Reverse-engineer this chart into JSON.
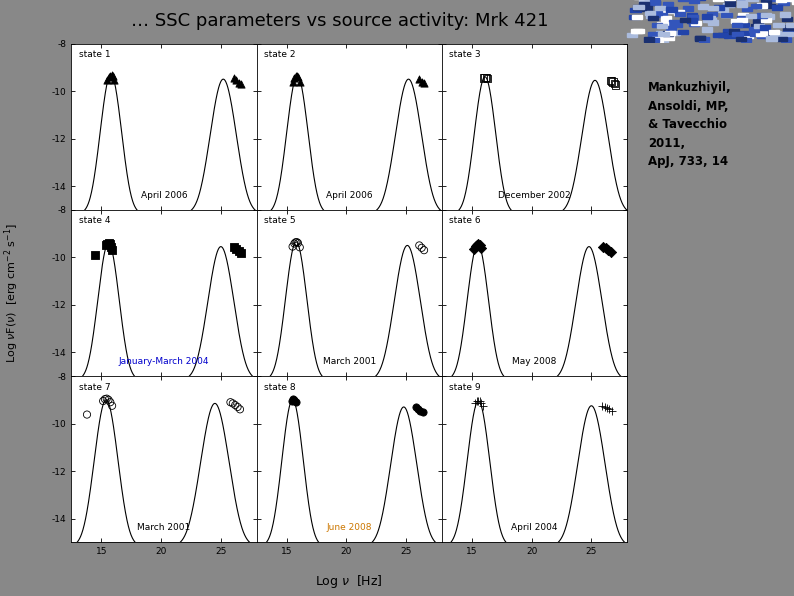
{
  "title": "… SSC parameters vs source activity: Mrk 421",
  "title_bg": "#ccff99",
  "title_fontsize": 13,
  "overall_bg": "#888888",
  "ylabel": "Log $\\nu$F($\\nu$)  [erg cm$^{-2}$ s$^{-1}$]",
  "xlabel": "Log $\\nu$  [Hz]",
  "annotation_text": "Mankuzhiyil,\nAnsoldi, MP,\n& Tavecchio\n2011,\nApJ, 733, 14",
  "annotation_bg": "#ffff99",
  "panels": [
    {
      "state": "state 1",
      "date": "April 2006",
      "date_color": "black",
      "synch_peak_x": 15.8,
      "ic_peak_x": 25.2,
      "synch_peak_y": -9.3,
      "ic_peak_y": -9.5,
      "s_sig": 0.9,
      "i_sig": 1.1,
      "data_pts": [
        [
          15.5,
          -9.55
        ],
        [
          15.65,
          -9.42
        ],
        [
          15.75,
          -9.35
        ],
        [
          15.85,
          -9.32
        ],
        [
          15.95,
          -9.37
        ],
        [
          16.1,
          -9.55
        ],
        [
          26.1,
          -9.45
        ],
        [
          26.3,
          -9.55
        ],
        [
          26.5,
          -9.65
        ],
        [
          26.7,
          -9.72
        ]
      ],
      "data_marker": "^",
      "data_filled": true
    },
    {
      "state": "state 2",
      "date": "April 2006",
      "date_color": "black",
      "synch_peak_x": 15.9,
      "ic_peak_x": 25.2,
      "synch_peak_y": -9.35,
      "ic_peak_y": -9.5,
      "s_sig": 0.9,
      "i_sig": 1.1,
      "data_pts": [
        [
          15.5,
          -9.6
        ],
        [
          15.65,
          -9.45
        ],
        [
          15.75,
          -9.38
        ],
        [
          15.85,
          -9.35
        ],
        [
          15.95,
          -9.4
        ],
        [
          16.1,
          -9.6
        ],
        [
          26.1,
          -9.5
        ],
        [
          26.3,
          -9.6
        ],
        [
          26.5,
          -9.65
        ]
      ],
      "data_marker": "^",
      "data_filled": true
    },
    {
      "state": "state 3",
      "date": "December 2002",
      "date_color": "black",
      "synch_peak_x": 16.1,
      "ic_peak_x": 25.3,
      "synch_peak_y": -9.4,
      "ic_peak_y": -9.55,
      "s_sig": 0.9,
      "i_sig": 1.1,
      "data_pts": [
        [
          16.0,
          -9.45
        ],
        [
          16.1,
          -9.42
        ],
        [
          16.2,
          -9.43
        ],
        [
          16.3,
          -9.47
        ],
        [
          26.6,
          -9.55
        ],
        [
          26.7,
          -9.58
        ],
        [
          26.8,
          -9.62
        ],
        [
          26.9,
          -9.68
        ],
        [
          27.0,
          -9.75
        ]
      ],
      "data_marker": "s",
      "data_filled": false
    },
    {
      "state": "state 4",
      "date": "January-March 2004",
      "date_color": "#0000cc",
      "synch_peak_x": 15.6,
      "ic_peak_x": 25.0,
      "synch_peak_y": -9.4,
      "ic_peak_y": -9.55,
      "s_sig": 0.9,
      "i_sig": 1.1,
      "data_pts": [
        [
          14.5,
          -9.9
        ],
        [
          15.4,
          -9.5
        ],
        [
          15.5,
          -9.43
        ],
        [
          15.6,
          -9.41
        ],
        [
          15.7,
          -9.45
        ],
        [
          15.8,
          -9.55
        ],
        [
          15.9,
          -9.7
        ],
        [
          26.1,
          -9.55
        ],
        [
          26.3,
          -9.65
        ],
        [
          26.5,
          -9.75
        ],
        [
          26.7,
          -9.82
        ]
      ],
      "data_marker": "s",
      "data_filled": true
    },
    {
      "state": "state 5",
      "date": "March 2001",
      "date_color": "black",
      "synch_peak_x": 15.8,
      "ic_peak_x": 25.1,
      "synch_peak_y": -9.35,
      "ic_peak_y": -9.5,
      "s_sig": 0.9,
      "i_sig": 1.1,
      "data_pts": [
        [
          15.5,
          -9.55
        ],
        [
          15.65,
          -9.42
        ],
        [
          15.75,
          -9.37
        ],
        [
          15.85,
          -9.36
        ],
        [
          15.95,
          -9.4
        ],
        [
          16.1,
          -9.58
        ],
        [
          26.1,
          -9.5
        ],
        [
          26.3,
          -9.6
        ],
        [
          26.5,
          -9.7
        ]
      ],
      "data_marker": "o",
      "data_filled": false
    },
    {
      "state": "state 6",
      "date": "May 2008",
      "date_color": "black",
      "synch_peak_x": 15.5,
      "ic_peak_x": 24.8,
      "synch_peak_y": -9.45,
      "ic_peak_y": -9.55,
      "s_sig": 0.9,
      "i_sig": 1.1,
      "data_pts": [
        [
          15.2,
          -9.65
        ],
        [
          15.35,
          -9.52
        ],
        [
          15.45,
          -9.47
        ],
        [
          15.55,
          -9.46
        ],
        [
          15.65,
          -9.5
        ],
        [
          15.75,
          -9.6
        ],
        [
          26.0,
          -9.55
        ],
        [
          26.2,
          -9.62
        ],
        [
          26.4,
          -9.7
        ],
        [
          26.6,
          -9.78
        ]
      ],
      "data_marker": "D",
      "data_filled": true
    },
    {
      "state": "state 7",
      "date": "March 2001",
      "date_color": "black",
      "synch_peak_x": 15.4,
      "ic_peak_x": 24.5,
      "synch_peak_y": -9.0,
      "ic_peak_y": -9.15,
      "s_sig": 1.0,
      "i_sig": 1.2,
      "data_pts": [
        [
          13.8,
          -9.62
        ],
        [
          15.15,
          -9.05
        ],
        [
          15.3,
          -8.97
        ],
        [
          15.45,
          -8.95
        ],
        [
          15.6,
          -9.0
        ],
        [
          15.75,
          -9.1
        ],
        [
          15.9,
          -9.25
        ],
        [
          25.8,
          -9.1
        ],
        [
          26.0,
          -9.15
        ],
        [
          26.2,
          -9.22
        ],
        [
          26.4,
          -9.3
        ],
        [
          26.6,
          -9.4
        ]
      ],
      "data_marker": "o",
      "data_filled": false
    },
    {
      "state": "state 8",
      "date": "June 2008",
      "date_color": "#cc7700",
      "synch_peak_x": 15.5,
      "ic_peak_x": 24.8,
      "synch_peak_y": -9.0,
      "ic_peak_y": -9.3,
      "s_sig": 0.9,
      "i_sig": 1.1,
      "data_pts": [
        [
          15.45,
          -9.05
        ],
        [
          15.55,
          -8.98
        ],
        [
          15.65,
          -9.0
        ],
        [
          15.75,
          -9.1
        ],
        [
          25.8,
          -9.3
        ],
        [
          26.0,
          -9.38
        ],
        [
          26.2,
          -9.45
        ],
        [
          26.4,
          -9.53
        ]
      ],
      "data_marker": "o",
      "data_filled": true
    },
    {
      "state": "state 9",
      "date": "April 2004",
      "date_color": "black",
      "synch_peak_x": 15.55,
      "ic_peak_x": 25.0,
      "synch_peak_y": -9.05,
      "ic_peak_y": -9.25,
      "s_sig": 0.95,
      "i_sig": 1.15,
      "data_pts": [
        [
          15.3,
          -9.15
        ],
        [
          15.45,
          -9.07
        ],
        [
          15.55,
          -9.04
        ],
        [
          15.65,
          -9.06
        ],
        [
          15.75,
          -9.13
        ],
        [
          15.9,
          -9.28
        ],
        [
          25.9,
          -9.25
        ],
        [
          26.1,
          -9.3
        ],
        [
          26.3,
          -9.35
        ],
        [
          26.5,
          -9.4
        ],
        [
          26.7,
          -9.45
        ]
      ],
      "data_marker": "+",
      "data_filled": true
    }
  ],
  "xlim": [
    12.5,
    28
  ],
  "ylim": [
    -15,
    -8
  ],
  "xticks": [
    15,
    20,
    25
  ],
  "yticks": [
    -14,
    -12,
    -10,
    -8
  ]
}
